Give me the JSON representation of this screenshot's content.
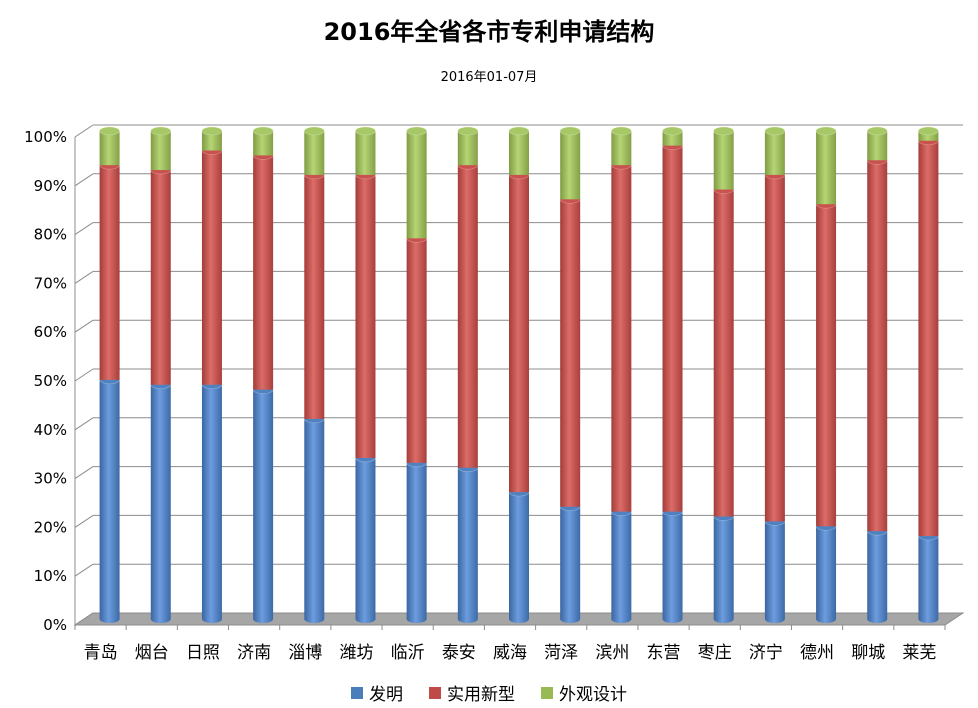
{
  "chart_data": {
    "type": "bar",
    "stacked": "percent",
    "title": "2016年全省各市专利申请结构",
    "subtitle": "2016年01-07月",
    "categories": [
      "青岛",
      "烟台",
      "日照",
      "济南",
      "淄博",
      "潍坊",
      "临沂",
      "泰安",
      "威海",
      "菏泽",
      "滨州",
      "东营",
      "枣庄",
      "济宁",
      "德州",
      "聊城",
      "莱芜"
    ],
    "series": [
      {
        "name": "发明",
        "color": "#4a7ebb",
        "values": [
          49,
          48,
          48,
          47,
          41,
          33,
          32,
          31,
          26,
          23,
          22,
          22,
          21,
          20,
          19,
          18,
          17
        ]
      },
      {
        "name": "实用新型",
        "color": "#be4b48",
        "values": [
          44,
          44,
          48,
          48,
          50,
          58,
          46,
          62,
          65,
          63,
          71,
          75,
          67,
          71,
          66,
          76,
          81
        ]
      },
      {
        "name": "外观设计",
        "color": "#98b954",
        "values": [
          7,
          8,
          4,
          5,
          9,
          9,
          22,
          7,
          9,
          14,
          7,
          3,
          12,
          9,
          15,
          6,
          2
        ]
      }
    ],
    "yticks": [
      "0%",
      "10%",
      "20%",
      "30%",
      "40%",
      "50%",
      "60%",
      "70%",
      "80%",
      "90%",
      "100%"
    ],
    "ylim": [
      0,
      100
    ],
    "grid": true,
    "legend_position": "bottom"
  }
}
